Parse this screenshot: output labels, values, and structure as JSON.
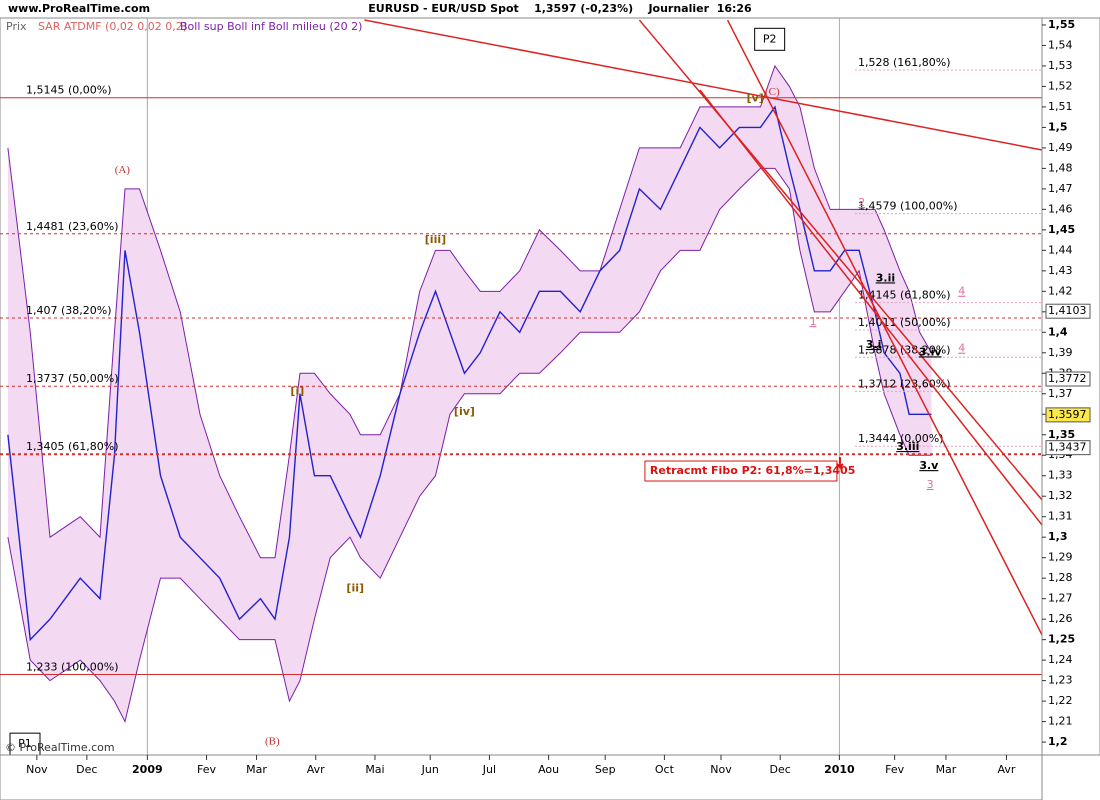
{
  "chart_data": {
    "type": "line",
    "site": "www.ProRealTime.com",
    "title": "EURUSD - EUR/USD Spot    1,3597 (-0,23%)    Journalier  16:26",
    "copyright": "© ProRealTime.com",
    "indicator_label": "SAR ATDMF (0,02 0,02 0,2)",
    "xlim": [
      0,
      79.2
    ],
    "xticks": [
      {
        "value": 2.8,
        "label": "Nov"
      },
      {
        "value": 6.6,
        "label": "Dec"
      },
      {
        "value": 11.2,
        "label": "2009"
      },
      {
        "value": 15.7,
        "label": "Fev"
      },
      {
        "value": 19.5,
        "label": "Mar"
      },
      {
        "value": 24.0,
        "label": "Avr"
      },
      {
        "value": 28.5,
        "label": "Mai"
      },
      {
        "value": 32.7,
        "label": "Jun"
      },
      {
        "value": 37.2,
        "label": "Jul"
      },
      {
        "value": 41.7,
        "label": "Aou"
      },
      {
        "value": 46.0,
        "label": "Sep"
      },
      {
        "value": 50.5,
        "label": "Oct"
      },
      {
        "value": 54.8,
        "label": "Nov"
      },
      {
        "value": 59.3,
        "label": "Dec"
      },
      {
        "value": 63.8,
        "label": "2010"
      },
      {
        "value": 68.0,
        "label": "Fev"
      },
      {
        "value": 71.9,
        "label": "Mar"
      },
      {
        "value": 76.5,
        "label": "Avr"
      }
    ],
    "ylim": [
      1.1937,
      1.5534
    ],
    "yticks": [
      {
        "value": 1.2,
        "label": "1,2"
      },
      {
        "value": 1.21,
        "label": "1,21"
      },
      {
        "value": 1.22,
        "label": "1,22"
      },
      {
        "value": 1.23,
        "label": "1,23"
      },
      {
        "value": 1.24,
        "label": "1,24"
      },
      {
        "value": 1.25,
        "label": "1,25"
      },
      {
        "value": 1.26,
        "label": "1,26"
      },
      {
        "value": 1.27,
        "label": "1,27"
      },
      {
        "value": 1.28,
        "label": "1,28"
      },
      {
        "value": 1.29,
        "label": "1,29"
      },
      {
        "value": 1.3,
        "label": "1,3"
      },
      {
        "value": 1.31,
        "label": "1,31"
      },
      {
        "value": 1.32,
        "label": "1,32"
      },
      {
        "value": 1.33,
        "label": "1,33"
      },
      {
        "value": 1.34,
        "label": "1,34"
      },
      {
        "value": 1.35,
        "label": "1,35"
      },
      {
        "value": 1.36,
        "label": "1,36"
      },
      {
        "value": 1.37,
        "label": "1,37"
      },
      {
        "value": 1.38,
        "label": "1,38"
      },
      {
        "value": 1.39,
        "label": "1,39"
      },
      {
        "value": 1.4,
        "label": "1,4"
      },
      {
        "value": 1.41,
        "label": "1,41"
      },
      {
        "value": 1.42,
        "label": "1,42"
      },
      {
        "value": 1.43,
        "label": "1,43"
      },
      {
        "value": 1.44,
        "label": "1,44"
      },
      {
        "value": 1.45,
        "label": "1,45"
      },
      {
        "value": 1.46,
        "label": "1,46"
      },
      {
        "value": 1.47,
        "label": "1,47"
      },
      {
        "value": 1.48,
        "label": "1,48"
      },
      {
        "value": 1.49,
        "label": "1,49"
      },
      {
        "value": 1.5,
        "label": "1,5"
      },
      {
        "value": 1.51,
        "label": "1,51"
      },
      {
        "value": 1.52,
        "label": "1,52"
      },
      {
        "value": 1.53,
        "label": "1,53"
      },
      {
        "value": 1.54,
        "label": "1,54"
      },
      {
        "value": 1.55,
        "label": "1,55"
      }
    ],
    "year_lines": [
      11.2,
      63.8
    ],
    "x": [
      0.6,
      2.3,
      3.8,
      6.1,
      7.6,
      8.7,
      9.5,
      10.6,
      12.2,
      13.7,
      15.2,
      16.7,
      18.2,
      19.8,
      20.9,
      22.0,
      22.8,
      23.9,
      25.1,
      26.6,
      27.4,
      28.9,
      30.4,
      31.9,
      33.1,
      34.2,
      35.3,
      36.5,
      38.0,
      39.5,
      41.0,
      42.6,
      44.1,
      45.6,
      47.1,
      48.6,
      50.2,
      51.7,
      53.2,
      54.7,
      56.2,
      57.8,
      58.9,
      60.0,
      60.8,
      61.9,
      63.1,
      64.2,
      65.3,
      66.5,
      67.2,
      68.4,
      69.1,
      69.9,
      70.8
    ],
    "series": [
      {
        "name": "Prix",
        "color": "#2222cc",
        "values": [
          1.35,
          1.25,
          1.26,
          1.28,
          1.27,
          1.34,
          1.44,
          1.4,
          1.33,
          1.3,
          1.29,
          1.28,
          1.26,
          1.27,
          1.26,
          1.3,
          1.37,
          1.33,
          1.33,
          1.31,
          1.3,
          1.33,
          1.37,
          1.4,
          1.42,
          1.4,
          1.38,
          1.39,
          1.41,
          1.4,
          1.42,
          1.42,
          1.41,
          1.43,
          1.44,
          1.47,
          1.46,
          1.48,
          1.5,
          1.49,
          1.5,
          1.5,
          1.51,
          1.48,
          1.46,
          1.43,
          1.43,
          1.44,
          1.44,
          1.41,
          1.39,
          1.38,
          1.36,
          1.36,
          1.36
        ]
      },
      {
        "name": "Boll sup Boll inf Boll milieu (20 2)",
        "color": "#7a1fa8",
        "fill": "#f3d9f1",
        "upper": [
          1.49,
          1.4,
          1.3,
          1.31,
          1.3,
          1.4,
          1.47,
          1.47,
          1.44,
          1.41,
          1.36,
          1.33,
          1.31,
          1.29,
          1.29,
          1.34,
          1.38,
          1.38,
          1.37,
          1.36,
          1.35,
          1.35,
          1.37,
          1.42,
          1.44,
          1.44,
          1.43,
          1.42,
          1.42,
          1.43,
          1.45,
          1.44,
          1.43,
          1.43,
          1.46,
          1.49,
          1.49,
          1.49,
          1.51,
          1.51,
          1.51,
          1.51,
          1.53,
          1.52,
          1.51,
          1.48,
          1.46,
          1.46,
          1.46,
          1.46,
          1.45,
          1.43,
          1.42,
          1.4,
          1.39
        ],
        "lower": [
          1.3,
          1.24,
          1.23,
          1.24,
          1.23,
          1.22,
          1.21,
          1.24,
          1.28,
          1.28,
          1.27,
          1.26,
          1.25,
          1.25,
          1.25,
          1.22,
          1.23,
          1.26,
          1.29,
          1.3,
          1.29,
          1.28,
          1.3,
          1.32,
          1.33,
          1.36,
          1.37,
          1.37,
          1.37,
          1.38,
          1.38,
          1.39,
          1.4,
          1.4,
          1.4,
          1.41,
          1.43,
          1.44,
          1.44,
          1.46,
          1.47,
          1.48,
          1.48,
          1.47,
          1.44,
          1.41,
          1.41,
          1.42,
          1.43,
          1.39,
          1.37,
          1.35,
          1.34,
          1.34,
          1.34
        ]
      }
    ],
    "fib_p1": [
      {
        "value": 1.5145,
        "label": "1,5145 (0,00%)"
      },
      {
        "value": 1.4481,
        "label": "1,4481 (23,60%)"
      },
      {
        "value": 1.407,
        "label": "1,407 (38,20%)"
      },
      {
        "value": 1.3737,
        "label": "1,3737 (50,00%)"
      },
      {
        "value": 1.3405,
        "label": "1,3405 (61,80%)"
      },
      {
        "value": 1.233,
        "label": "1,233 (100,00%)"
      }
    ],
    "fib_p2": [
      {
        "value": 1.528,
        "label": "1,528 (161,80%)"
      },
      {
        "value": 1.4579,
        "label": "1,4579 (100,00%)"
      },
      {
        "value": 1.4145,
        "label": "1,4145 (61,80%)"
      },
      {
        "value": 1.4011,
        "label": "1,4011 (50,00%)"
      },
      {
        "value": 1.3878,
        "label": "1,3878 (38,20%)"
      },
      {
        "value": 1.3712,
        "label": "1,3712 (23,60%)"
      },
      {
        "value": 1.3444,
        "label": "1,3444 (0,00%)"
      }
    ],
    "trend_lines": [
      {
        "x": [
          27.7,
          79.2
        ],
        "y": [
          1.5524,
          1.489
        ]
      },
      {
        "x": [
          48.6,
          79.2
        ],
        "y": [
          1.5524,
          1.3182
        ]
      },
      {
        "x": [
          55.3,
          79.2
        ],
        "y": [
          1.5524,
          1.2523
        ]
      },
      {
        "x": [
          53.2,
          79.2
        ],
        "y": [
          1.5183,
          1.306
        ]
      }
    ],
    "annotations": [
      {
        "text": "(A)",
        "x": 9.3,
        "y": 1.479,
        "color": "#c03030",
        "style": "serif"
      },
      {
        "text": "(B)",
        "x": 20.7,
        "y": 1.2,
        "color": "#c03030",
        "style": "serif"
      },
      {
        "text": "(C)",
        "x": 58.7,
        "y": 1.517,
        "color": "#c03030",
        "style": "serif"
      },
      {
        "text": "[i]",
        "x": 22.6,
        "y": 1.371,
        "color": "#8b5a00",
        "style": "wave"
      },
      {
        "text": "[ii]",
        "x": 27.0,
        "y": 1.275,
        "color": "#8b5a00",
        "style": "wave"
      },
      {
        "text": "[iii]",
        "x": 33.1,
        "y": 1.445,
        "color": "#8b5a00",
        "style": "wave"
      },
      {
        "text": "[iv]",
        "x": 35.3,
        "y": 1.361,
        "color": "#8b5a00",
        "style": "wave"
      },
      {
        "text": "[v]",
        "x": 57.4,
        "y": 1.514,
        "color": "#8b5a00",
        "style": "wave"
      },
      {
        "text": "P1",
        "x": 1.9,
        "y": 1.199,
        "color": "#000000",
        "style": "box"
      },
      {
        "text": "P2",
        "x": 58.5,
        "y": 1.543,
        "color": "#000000",
        "style": "box"
      },
      {
        "text": "3.i",
        "x": 66.4,
        "y": 1.3938,
        "color": "#000000",
        "style": "sub"
      },
      {
        "text": "3.ii",
        "x": 67.3,
        "y": 1.4263,
        "color": "#000000",
        "style": "sub"
      },
      {
        "text": "3.iii",
        "x": 69.0,
        "y": 1.344,
        "color": "#000000",
        "style": "sub"
      },
      {
        "text": "3.iv",
        "x": 70.7,
        "y": 1.3902,
        "color": "#000000",
        "style": "sub"
      },
      {
        "text": "3.v",
        "x": 70.6,
        "y": 1.3347,
        "color": "#000000",
        "style": "sub"
      },
      {
        "text": "1",
        "x": 61.8,
        "y": 1.405,
        "color": "#e070a0",
        "style": "pink"
      },
      {
        "text": "2",
        "x": 65.5,
        "y": 1.4631,
        "color": "#e070a0",
        "style": "pink"
      },
      {
        "text": "3",
        "x": 70.7,
        "y": 1.3255,
        "color": "#e070a0",
        "style": "pink"
      },
      {
        "text": "4",
        "x": 73.1,
        "y": 1.4198,
        "color": "#e070a0",
        "style": "pink"
      },
      {
        "text": "4",
        "x": 73.1,
        "y": 1.392,
        "color": "#e070a0",
        "style": "pink"
      },
      {
        "text": "Retracmt Fibo P2: 61,8%=1,3405",
        "x": 49.4,
        "y": 1.3323,
        "color": "#dd1111",
        "style": "callout"
      }
    ],
    "price_labels": [
      {
        "value": 1.4103,
        "label": "1,4103",
        "color": "#ffffff"
      },
      {
        "value": 1.3772,
        "label": "1,3772",
        "color": "#ffffff"
      },
      {
        "value": 1.3597,
        "label": "1,3597",
        "color": "#ffe84a"
      },
      {
        "value": 1.3437,
        "label": "1,3437",
        "color": "#ffffff"
      }
    ]
  }
}
